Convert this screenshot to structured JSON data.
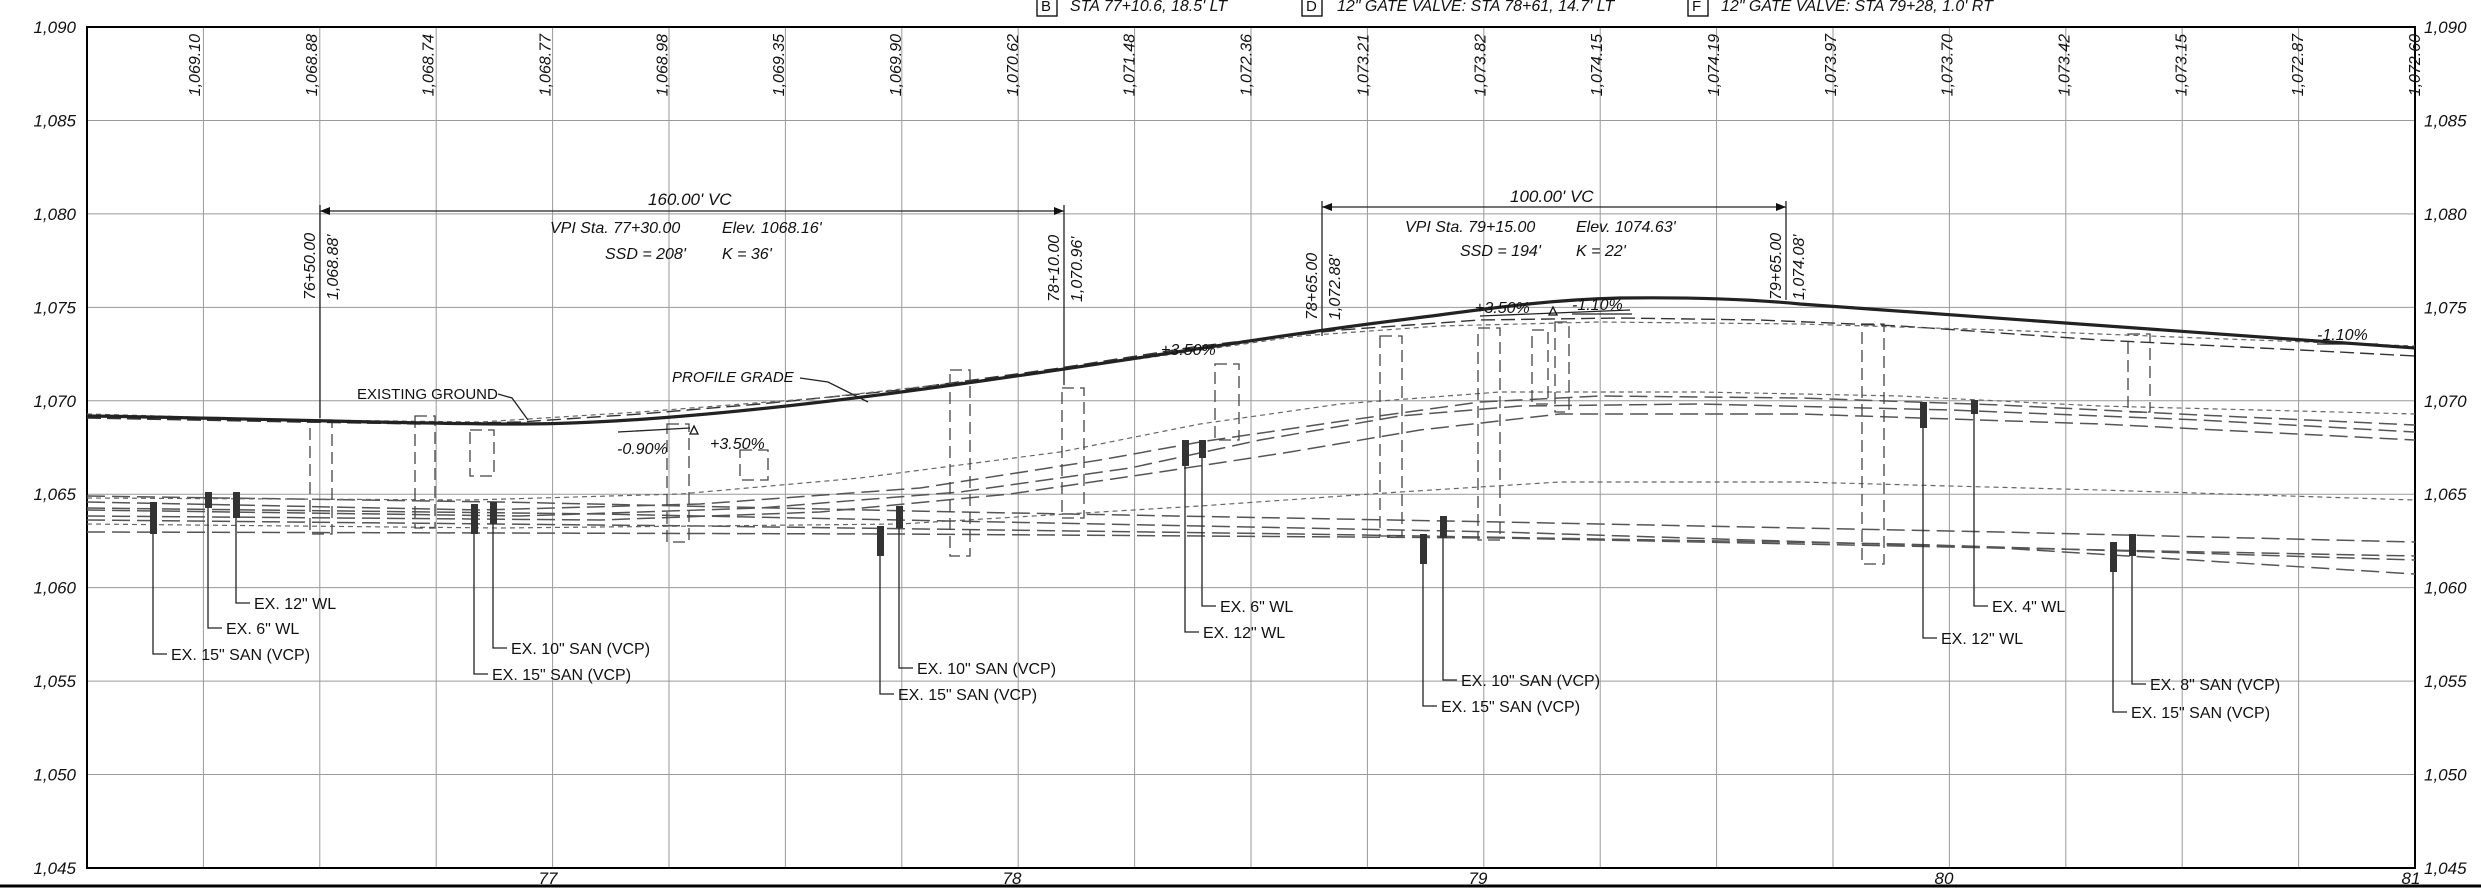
{
  "header": {
    "notes": [
      {
        "tag": "B",
        "text": "STA 77+10.6, 18.5' LT"
      },
      {
        "tag": "D",
        "text": "12\" GATE VALVE: STA 78+61, 14.7' LT"
      },
      {
        "tag": "F",
        "text": "12\" GATE VALVE: STA 79+28, 1.0' RT"
      }
    ]
  },
  "elevation_axis": {
    "labels": [
      "1,090",
      "1,085",
      "1,080",
      "1,075",
      "1,070",
      "1,065",
      "1,060",
      "1,055",
      "1,050",
      "1,045"
    ]
  },
  "station_axis": {
    "labels": [
      "77",
      "78",
      "79",
      "80",
      "81"
    ]
  },
  "grade_elevations": [
    "1,069.10",
    "1,068.88",
    "1,068.74",
    "1,068.77",
    "1,068.98",
    "1,069.35",
    "1,069.90",
    "1,070.62",
    "1,071.48",
    "1,072.36",
    "1,073.21",
    "1,073.82",
    "1,074.15",
    "1,074.19",
    "1,073.97",
    "1,073.70",
    "1,073.42",
    "1,073.15",
    "1,072.87",
    "1,072.60"
  ],
  "vertical_curves": [
    {
      "length": "160.00' VC",
      "pvi": "VPI Sta. 77+30.00",
      "ssd": "SSD = 208'",
      "elev": "Elev. 1068.16'",
      "k": "K = 36'",
      "bvc_sta": "76+50.00",
      "bvc_elev": "1,068.88'",
      "evc_sta": "78+10.00",
      "evc_elev": "1,070.96'"
    },
    {
      "length": "100.00' VC",
      "pvi": "VPI Sta. 79+15.00",
      "ssd": "SSD = 194'",
      "elev": "Elev. 1074.63'",
      "k": "K = 22'",
      "bvc_sta": "78+65.00",
      "bvc_elev": "1,072.88'",
      "evc_sta": "79+65.00",
      "evc_elev": "1,074.08'"
    }
  ],
  "profile_labels": {
    "existing_ground": "EXISTING GROUND",
    "profile_grade": "PROFILE GRADE"
  },
  "slopes": {
    "s1": "-0.90%",
    "s2": "+3.50%",
    "s3": "+3.50%",
    "s4": "+3.50%",
    "s5": "-1.10%",
    "s6": "-1.10%"
  },
  "utilities": [
    {
      "label": "EX. 12\" WL"
    },
    {
      "label": "EX. 6\" WL"
    },
    {
      "label": "EX. 15\" SAN (VCP)"
    },
    {
      "label": "EX. 10\" SAN (VCP)"
    },
    {
      "label": "EX. 15\" SAN (VCP)"
    },
    {
      "label": "EX. 10\" SAN (VCP)"
    },
    {
      "label": "EX. 15\" SAN (VCP)"
    },
    {
      "label": "EX. 6\" WL"
    },
    {
      "label": "EX. 12\" WL"
    },
    {
      "label": "EX. 10\" SAN (VCP)"
    },
    {
      "label": "EX. 15\" SAN (VCP)"
    },
    {
      "label": "EX. 4\" WL"
    },
    {
      "label": "EX. 12\" WL"
    },
    {
      "label": "EX. 8\" SAN (VCP)"
    },
    {
      "label": "EX. 15\" SAN (VCP)"
    }
  ]
}
